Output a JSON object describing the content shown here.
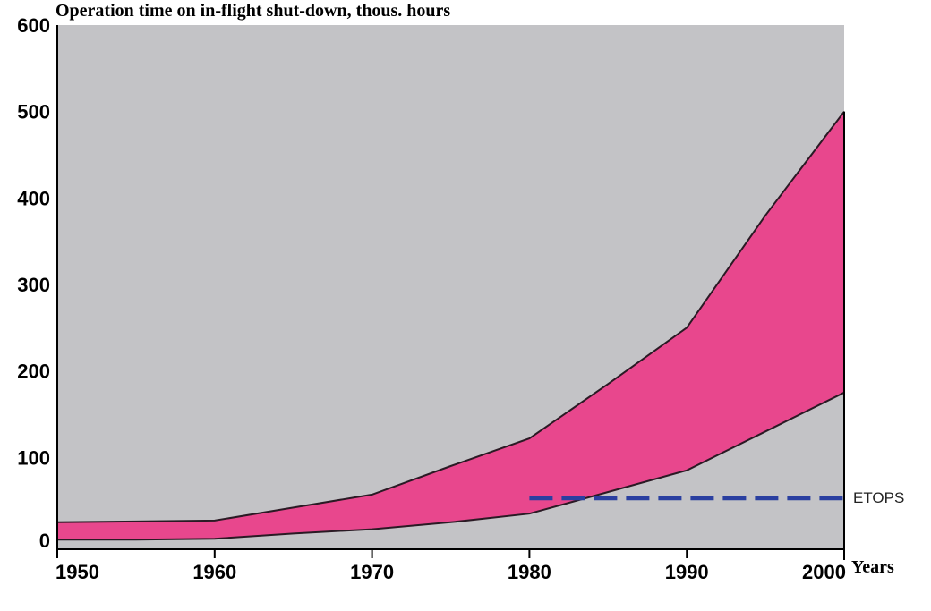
{
  "chart_data": {
    "type": "area",
    "title": "Operation time on in-flight shut-down, thous. hours",
    "xlabel": "Years",
    "ylabel": "",
    "xlim": [
      1950,
      2000
    ],
    "ylim": [
      0,
      600
    ],
    "xticks": [
      "1950",
      "1960",
      "1970",
      "1980",
      "1990",
      "2000"
    ],
    "yticks": [
      "0",
      "100",
      "200",
      "300",
      "400",
      "500",
      "600"
    ],
    "grid": false,
    "band": {
      "x": [
        1950,
        1955,
        1960,
        1965,
        1970,
        1975,
        1980,
        1985,
        1990,
        1995,
        2000
      ],
      "lower": [
        5,
        5,
        6,
        12,
        17,
        25,
        35,
        60,
        85,
        130,
        175
      ],
      "upper": [
        25,
        26,
        27,
        42,
        57,
        90,
        122,
        185,
        250,
        380,
        500
      ]
    },
    "etops": {
      "label": "ETOPS",
      "value": 53,
      "x_start": 1980,
      "x_end": 2000
    },
    "colors": {
      "plot_background": "#c3c3c6",
      "band_fill": "#e8478d",
      "boundary_line": "#2a1a24",
      "etops_line": "#2a3fa0"
    }
  }
}
